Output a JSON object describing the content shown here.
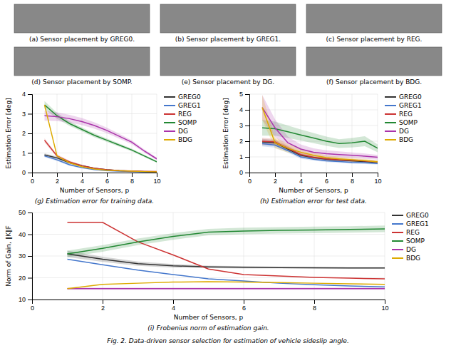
{
  "chart_data": [
    {
      "type": "image",
      "xlabel": "(a) Sensor placement by GREG0."
    },
    {
      "type": "image",
      "xlabel": "(b) Sensor placement by GREG1."
    },
    {
      "type": "image",
      "xlabel": "(c) Sensor placement by REG."
    },
    {
      "type": "image",
      "xlabel": "(d) Sensor placement by SOMP."
    },
    {
      "type": "image",
      "xlabel": "(e) Sensor placement by DG."
    },
    {
      "type": "image",
      "xlabel": "(f) Sensor placement by BDG."
    },
    {
      "type": "line",
      "title": "(g) Estimation error for training data.",
      "xlabel": "Number of Sensors, p",
      "ylabel": "Estimation Error [deg]",
      "x": [
        1,
        2,
        3,
        4,
        5,
        6,
        7,
        8,
        9,
        10
      ],
      "xlim": [
        0,
        10
      ],
      "xticks": [
        0,
        2,
        4,
        6,
        8,
        10
      ],
      "ylim": [
        0,
        4
      ],
      "yticks": [
        0,
        1,
        2,
        3,
        4
      ],
      "grid": true,
      "legend": "right",
      "series": [
        {
          "name": "GREG0",
          "color": "#333333",
          "values": [
            0.9,
            0.75,
            0.5,
            0.35,
            0.22,
            0.15,
            0.1,
            0.07,
            0.05,
            0.04
          ],
          "std": [
            0.08,
            0.07,
            0.06,
            0.05,
            0.03,
            0.02,
            0.02,
            0.01,
            0.01,
            0.01
          ]
        },
        {
          "name": "GREG1",
          "color": "#4477CC",
          "values": [
            0.85,
            0.65,
            0.4,
            0.25,
            0.15,
            0.1,
            0.07,
            0.05,
            0.04,
            0.03
          ],
          "std": [
            0.07,
            0.06,
            0.05,
            0.04,
            0.03,
            0.02,
            0.01,
            0.01,
            0.01,
            0.005
          ]
        },
        {
          "name": "REG",
          "color": "#CC3333",
          "values": [
            1.65,
            0.85,
            0.55,
            0.35,
            0.22,
            0.15,
            0.1,
            0.08,
            0.06,
            0.05
          ],
          "std": [
            0.1,
            0.08,
            0.06,
            0.05,
            0.03,
            0.02,
            0.02,
            0.01,
            0.01,
            0.01
          ]
        },
        {
          "name": "SOMP",
          "color": "#228833",
          "values": [
            3.45,
            2.9,
            2.5,
            2.2,
            1.9,
            1.65,
            1.4,
            1.15,
            0.85,
            0.55
          ],
          "std": [
            0.2,
            0.15,
            0.12,
            0.1,
            0.1,
            0.09,
            0.08,
            0.07,
            0.06,
            0.05
          ]
        },
        {
          "name": "DG",
          "color": "#AA33AA",
          "values": [
            2.9,
            2.85,
            2.75,
            2.6,
            2.4,
            2.15,
            1.85,
            1.55,
            1.1,
            0.7
          ],
          "std": [
            0.25,
            0.22,
            0.2,
            0.18,
            0.16,
            0.14,
            0.12,
            0.1,
            0.08,
            0.06
          ]
        },
        {
          "name": "BDG",
          "color": "#DDAA00",
          "values": [
            3.45,
            0.85,
            0.5,
            0.3,
            0.18,
            0.12,
            0.09,
            0.07,
            0.05,
            0.04
          ],
          "std": [
            0.0,
            0.0,
            0.0,
            0.0,
            0.0,
            0.0,
            0.0,
            0.0,
            0.0,
            0.0
          ]
        }
      ]
    },
    {
      "type": "line",
      "title": "(h) Estimation error for test data.",
      "xlabel": "Number of Sensors, p",
      "ylabel": "Estimation Error [deg]",
      "x": [
        1,
        2,
        3,
        4,
        5,
        6,
        7,
        8,
        9,
        10
      ],
      "xlim": [
        0,
        10
      ],
      "xticks": [
        0,
        2,
        4,
        6,
        8,
        10
      ],
      "ylim": [
        0,
        5
      ],
      "yticks": [
        0,
        1,
        2,
        3,
        4,
        5
      ],
      "grid": true,
      "legend": "right",
      "series": [
        {
          "name": "GREG0",
          "color": "#333333",
          "values": [
            1.95,
            1.9,
            1.5,
            1.1,
            0.95,
            0.85,
            0.8,
            0.75,
            0.7,
            0.65
          ],
          "std": [
            0.2,
            0.18,
            0.15,
            0.12,
            0.1,
            0.09,
            0.09,
            0.09,
            0.08,
            0.08
          ]
        },
        {
          "name": "GREG1",
          "color": "#4477CC",
          "values": [
            1.85,
            1.75,
            1.4,
            1.0,
            0.85,
            0.75,
            0.7,
            0.65,
            0.62,
            0.58
          ],
          "std": [
            0.18,
            0.16,
            0.13,
            0.11,
            0.09,
            0.08,
            0.08,
            0.08,
            0.07,
            0.07
          ]
        },
        {
          "name": "REG",
          "color": "#CC3333",
          "values": [
            2.0,
            1.95,
            1.55,
            1.15,
            0.98,
            0.88,
            0.82,
            0.78,
            0.74,
            0.68
          ],
          "std": [
            0.22,
            0.2,
            0.16,
            0.13,
            0.11,
            0.1,
            0.09,
            0.09,
            0.08,
            0.08
          ]
        },
        {
          "name": "SOMP",
          "color": "#228833",
          "values": [
            2.85,
            2.8,
            2.6,
            2.4,
            2.2,
            2.0,
            1.85,
            1.9,
            2.0,
            1.55
          ],
          "std": [
            0.5,
            0.45,
            0.4,
            0.35,
            0.32,
            0.3,
            0.28,
            0.3,
            0.32,
            0.25
          ]
        },
        {
          "name": "DG",
          "color": "#AA33AA",
          "values": [
            4.15,
            2.85,
            1.9,
            1.5,
            1.3,
            1.2,
            1.15,
            1.1,
            1.05,
            0.98
          ],
          "std": [
            0.8,
            0.55,
            0.4,
            0.3,
            0.25,
            0.22,
            0.2,
            0.18,
            0.17,
            0.15
          ]
        },
        {
          "name": "BDG",
          "color": "#DDAA00",
          "values": [
            4.15,
            1.9,
            1.55,
            1.3,
            1.1,
            0.95,
            0.88,
            0.82,
            0.76,
            0.68
          ],
          "std": [
            0.8,
            0.35,
            0.28,
            0.22,
            0.18,
            0.15,
            0.13,
            0.12,
            0.11,
            0.1
          ]
        }
      ]
    },
    {
      "type": "line",
      "title": "(i) Frobenius norm of estimation gain.",
      "xlabel": "Number of Sensors, p",
      "ylabel": "Norm of Gain, ‖K‖F",
      "x": [
        1,
        2,
        3,
        4,
        5,
        6,
        7,
        8,
        9,
        10
      ],
      "xlim": [
        0,
        10
      ],
      "xticks": [
        0,
        2,
        4,
        6,
        8,
        10
      ],
      "ylim": [
        10,
        50
      ],
      "yticks": [
        10,
        20,
        30,
        40,
        50
      ],
      "grid": true,
      "legend": "right",
      "annotations": [
        "Fig. 2. Data-driven sensor selection for estimation of vehicle sideslip angle."
      ],
      "series": [
        {
          "name": "GREG0",
          "color": "#333333",
          "values": [
            31.0,
            28.5,
            26.5,
            25.5,
            25.0,
            24.8,
            24.7,
            24.6,
            24.5,
            24.5
          ],
          "std": [
            1.5,
            1.2,
            1.0,
            0.8,
            0.6,
            0.5,
            0.4,
            0.4,
            0.3,
            0.3
          ]
        },
        {
          "name": "GREG1",
          "color": "#4477CC",
          "values": [
            28.5,
            26.0,
            23.5,
            21.5,
            19.5,
            18.5,
            17.5,
            16.8,
            16.2,
            15.8
          ],
          "std": [
            0.0,
            0.0,
            0.0,
            0.0,
            0.0,
            0.0,
            0.0,
            0.0,
            0.0,
            0.0
          ]
        },
        {
          "name": "REG",
          "color": "#CC3333",
          "values": [
            45.5,
            45.5,
            36.5,
            30.5,
            24.0,
            21.5,
            20.8,
            20.2,
            19.8,
            19.5
          ],
          "std": [
            0.0,
            0.0,
            0.0,
            0.0,
            0.0,
            0.0,
            0.0,
            0.0,
            0.0,
            0.0
          ]
        },
        {
          "name": "SOMP",
          "color": "#228833",
          "values": [
            31.0,
            33.5,
            36.5,
            39.0,
            41.0,
            41.5,
            41.8,
            42.0,
            42.2,
            42.5
          ],
          "std": [
            1.5,
            1.5,
            1.5,
            1.5,
            1.5,
            1.5,
            1.5,
            1.5,
            1.5,
            1.5
          ]
        },
        {
          "name": "DG",
          "color": "#AA33AA",
          "values": [
            15.0,
            15.0,
            15.0,
            15.0,
            15.0,
            15.0,
            15.0,
            15.0,
            15.0,
            15.0
          ],
          "std": [
            0.5,
            0.5,
            0.5,
            0.5,
            0.5,
            0.5,
            0.5,
            0.5,
            0.5,
            0.5
          ]
        },
        {
          "name": "BDG",
          "color": "#DDAA00",
          "values": [
            15.0,
            17.0,
            17.5,
            18.0,
            18.2,
            18.0,
            17.8,
            17.5,
            17.2,
            17.0
          ],
          "std": [
            0.0,
            0.0,
            0.0,
            0.0,
            0.0,
            0.0,
            0.0,
            0.0,
            0.0,
            0.0
          ]
        }
      ]
    }
  ]
}
